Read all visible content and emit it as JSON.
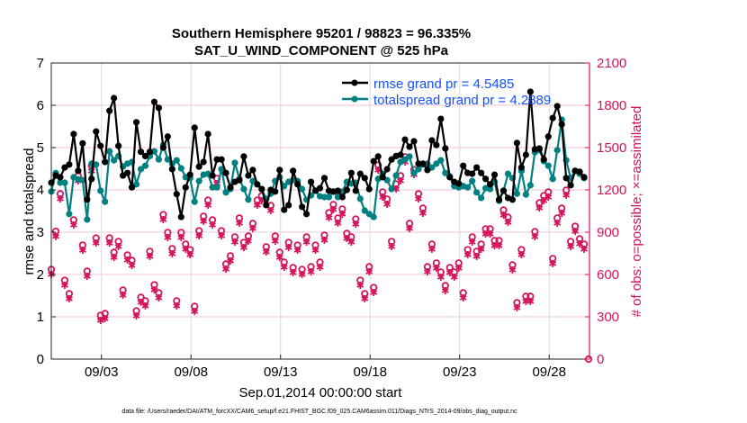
{
  "chart_data": {
    "type": "line",
    "title": "Southern Hemisphere 95201 / 98823 = 96.335%",
    "subtitle": "SAT_U_WIND_COMPONENT @ 525 hPa",
    "xlabel": "Sep.01,2014 00:00:00 start",
    "ylabel_left": "rmse and totalspread",
    "ylabel_right": "# of obs: o=possible; ×=assimilated",
    "footer": "data file: /Users/raeder/DAI/ATM_forcXX/CAM6_setup/f.e21.FHIST_BGC.f09_025.CAM6assim.011/Diags_NTrS_2014-09/obs_diag_output.nc",
    "xlim": [
      -0.8,
      29.25
    ],
    "x_units": "days since Sep.01,2014 00:00:00",
    "x_start": -0.8,
    "x_step": 0.25,
    "x_ticks": [
      2,
      7,
      12,
      17,
      22,
      27
    ],
    "x_tick_labels": [
      "09/03",
      "09/08",
      "09/13",
      "09/18",
      "09/23",
      "09/28"
    ],
    "ylim_left": [
      0,
      7
    ],
    "y_ticks_left": [
      "0",
      "1",
      "2",
      "3",
      "4",
      "5",
      "6",
      "7"
    ],
    "ylim_right": [
      0,
      2100
    ],
    "y_ticks_right": [
      "0",
      "300",
      "600",
      "900",
      "1200",
      "1500",
      "1800",
      "2100"
    ],
    "grid": true,
    "legend_placement": "top-right",
    "colors": {
      "rmse": "#000000",
      "totalspread": "#008080",
      "obs": "#d3145a",
      "legend_text": "#1450ff",
      "grid_h": "#f2c6d4",
      "grid_v": "#d9d9d9"
    },
    "series": [
      {
        "name": "rmse",
        "legend": "rmse grand pr = 4.5485",
        "axis": "left",
        "values": [
          4.17,
          4.34,
          4.3,
          4.53,
          4.6,
          5.32,
          4.45,
          5.1,
          3.77,
          4.26,
          5.38,
          5.04,
          4.66,
          5.87,
          6.17,
          5.04,
          4.34,
          4.4,
          4.06,
          5.6,
          4.9,
          4.8,
          4.9,
          6.08,
          5.94,
          5.0,
          5.26,
          4.49,
          3.9,
          3.36,
          4.06,
          4.36,
          5.47,
          4.55,
          4.66,
          5.32,
          4.34,
          4.72,
          4.72,
          4.4,
          4.06,
          4.19,
          4.23,
          4.79,
          4.34,
          4.47,
          4.13,
          4.02,
          3.64,
          4.0,
          3.96,
          4.47,
          3.53,
          3.64,
          4.45,
          4.13,
          3.6,
          3.43,
          4.19,
          3.98,
          4.04,
          4.28,
          3.98,
          3.96,
          3.98,
          3.83,
          4.0,
          4.4,
          3.98,
          4.38,
          4.28,
          4.02,
          4.68,
          4.79,
          4.3,
          4.49,
          4.72,
          4.8,
          4.83,
          5.19,
          5.02,
          5.15,
          4.62,
          4.62,
          4.47,
          5.17,
          5.06,
          5.68,
          4.98,
          4.3,
          4.19,
          4.15,
          4.57,
          4.4,
          4.38,
          4.53,
          4.4,
          4.26,
          4.13,
          4.36,
          3.77,
          3.98,
          3.81,
          3.77,
          5.11,
          4.53,
          4.83,
          6.32,
          4.96,
          4.98,
          4.72,
          5.26,
          5.7,
          5.98,
          5.55,
          4.28,
          4.11,
          4.45,
          4.43,
          4.3,
          null
        ]
      },
      {
        "name": "totalspread",
        "legend": "totalspread grand pr = 4.2889",
        "axis": "left",
        "values": [
          3.96,
          4.4,
          4.17,
          4.17,
          3.43,
          4.3,
          4.25,
          4.23,
          3.3,
          4.62,
          4.6,
          3.98,
          3.72,
          4.91,
          4.7,
          4.8,
          4.55,
          4.62,
          4.66,
          4.13,
          4.49,
          4.57,
          4.8,
          4.91,
          4.72,
          5.06,
          4.72,
          4.62,
          4.7,
          4.51,
          4.3,
          4.28,
          3.72,
          4.21,
          4.36,
          4.38,
          4.06,
          4.06,
          4.49,
          3.94,
          4.02,
          4.64,
          4.26,
          4.02,
          3.77,
          4.21,
          4.13,
          4.02,
          3.79,
          3.91,
          4.21,
          4.3,
          4.09,
          4.19,
          4.23,
          4.21,
          4.02,
          3.77,
          3.87,
          3.98,
          3.85,
          3.83,
          3.83,
          3.96,
          3.83,
          3.96,
          4.19,
          4.15,
          4.17,
          3.79,
          3.51,
          3.43,
          3.36,
          4.26,
          4.38,
          4.23,
          4.02,
          4.34,
          4.66,
          4.72,
          4.79,
          4.4,
          4.49,
          4.6,
          4.62,
          4.53,
          4.62,
          4.7,
          4.4,
          4.32,
          4.09,
          4.06,
          4.09,
          4.06,
          4.21,
          3.94,
          3.81,
          4.04,
          4.02,
          4.19,
          3.74,
          3.98,
          4.38,
          4.28,
          3.91,
          4.45,
          3.89,
          4.11,
          4.89,
          4.94,
          4.68,
          4.57,
          4.26,
          4.94,
          5.66,
          4.7,
          4.28,
          4.45,
          4.38,
          4.28,
          null
        ]
      },
      {
        "name": "possible",
        "axis": "right",
        "marker": "o",
        "values": [
          636,
          906,
          1172,
          559,
          464,
          987,
          1300,
          808,
          623,
          1370,
          859,
          310,
          323,
          859,
          757,
          834,
          489,
          738,
          700,
          342,
          438,
          413,
          764,
          527,
          470,
          1025,
          898,
          783,
          413,
          898,
          815,
          776,
          374,
          910,
          1013,
          1127,
          987,
          1281,
          910,
          674,
          732,
          866,
          1000,
          827,
          872,
          962,
          1127,
          1159,
          796,
          1089,
          872,
          757,
          687,
          827,
          649,
          808,
          636,
          866,
          655,
          808,
          687,
          879,
          1038,
          1096,
          1000,
          1064,
          891,
          866,
          993,
          559,
          464,
          655,
          508,
          1376,
          1185,
          1134,
          834,
          1242,
          1300,
          1434,
          962,
          1344,
          1172,
          1070,
          655,
          815,
          681,
          617,
          521,
          649,
          617,
          681,
          470,
          776,
          866,
          764,
          815,
          923,
          923,
          840,
          840,
          1057,
          1006,
          668,
          400,
          776,
          445,
          445,
          904,
          1108,
          1159,
          1185,
          713,
          1000,
          1070,
          1198,
          834,
          942,
          853,
          815,
          0
        ]
      },
      {
        "name": "assimilated",
        "axis": "right",
        "marker": "*",
        "values": [
          600,
          870,
          1136,
          523,
          428,
          951,
          1264,
          772,
          587,
          1334,
          823,
          274,
          287,
          823,
          721,
          798,
          453,
          702,
          664,
          306,
          402,
          377,
          728,
          491,
          434,
          989,
          862,
          747,
          377,
          862,
          779,
          740,
          338,
          874,
          977,
          1091,
          951,
          1245,
          874,
          638,
          696,
          830,
          964,
          791,
          836,
          926,
          1091,
          1123,
          760,
          1053,
          836,
          721,
          651,
          791,
          613,
          772,
          600,
          830,
          619,
          772,
          651,
          843,
          1002,
          1060,
          964,
          1028,
          855,
          830,
          957,
          523,
          428,
          619,
          472,
          1340,
          1149,
          1098,
          798,
          1206,
          1264,
          1398,
          926,
          1308,
          1136,
          1034,
          619,
          779,
          645,
          581,
          485,
          613,
          581,
          645,
          434,
          740,
          830,
          728,
          779,
          887,
          887,
          804,
          804,
          1021,
          970,
          632,
          364,
          740,
          409,
          409,
          868,
          1072,
          1123,
          1149,
          677,
          964,
          1034,
          1162,
          798,
          906,
          817,
          779,
          null
        ]
      }
    ]
  }
}
